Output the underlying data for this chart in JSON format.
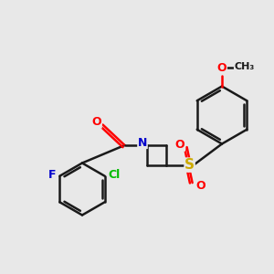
{
  "bg_color": "#e8e8e8",
  "atom_colors": {
    "F": "#0000cc",
    "Cl": "#00bb00",
    "O": "#ff0000",
    "N": "#0000cc",
    "S": "#ccaa00",
    "C": "#1a1a1a"
  },
  "figsize": [
    3.0,
    3.0
  ],
  "dpi": 100,
  "lw": 1.8
}
